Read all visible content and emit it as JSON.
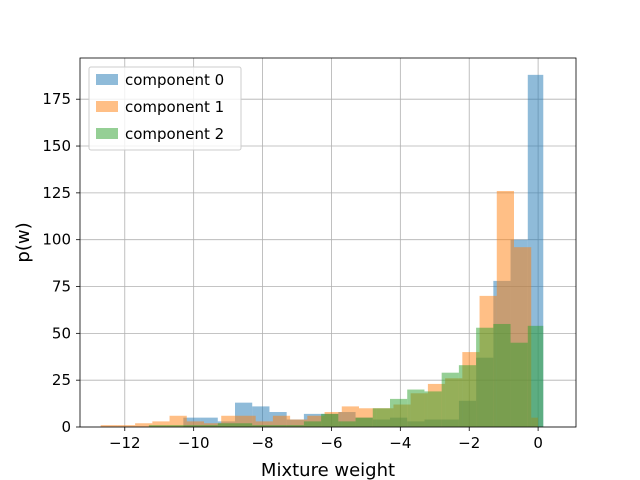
{
  "chart_data": {
    "type": "bar",
    "subtype": "histogram",
    "title": "",
    "xlabel": "Mixture weight",
    "ylabel": "p(w)",
    "xlim": [
      -13.3,
      1.1
    ],
    "ylim": [
      0,
      197
    ],
    "xticks": [
      -12,
      -10,
      -8,
      -6,
      -4,
      -2,
      0
    ],
    "xtick_labels": [
      "−12",
      "−10",
      "−8",
      "−6",
      "−4",
      "−2",
      "0"
    ],
    "yticks": [
      0,
      25,
      50,
      75,
      100,
      125,
      150,
      175
    ],
    "ytick_labels": [
      "0",
      "25",
      "50",
      "75",
      "100",
      "125",
      "150",
      "175"
    ],
    "grid": true,
    "legend_position": "top-left",
    "alpha": 0.5,
    "series": [
      {
        "name": "component 0",
        "color": "#1f77b4",
        "bins": [
          {
            "x0": -10.3,
            "x1": -9.8,
            "count": 5
          },
          {
            "x0": -9.8,
            "x1": -9.3,
            "count": 5
          },
          {
            "x0": -9.3,
            "x1": -8.8,
            "count": 3
          },
          {
            "x0": -8.8,
            "x1": -8.3,
            "count": 13
          },
          {
            "x0": -8.3,
            "x1": -7.8,
            "count": 11
          },
          {
            "x0": -7.8,
            "x1": -7.3,
            "count": 8
          },
          {
            "x0": -7.3,
            "x1": -6.8,
            "count": 4
          },
          {
            "x0": -6.8,
            "x1": -6.3,
            "count": 7
          },
          {
            "x0": -6.3,
            "x1": -5.8,
            "count": 7
          },
          {
            "x0": -5.8,
            "x1": -5.3,
            "count": 8
          },
          {
            "x0": -5.3,
            "x1": -4.8,
            "count": 5
          },
          {
            "x0": -4.8,
            "x1": -4.3,
            "count": 4
          },
          {
            "x0": -4.3,
            "x1": -3.8,
            "count": 5
          },
          {
            "x0": -3.8,
            "x1": -3.3,
            "count": 3
          },
          {
            "x0": -3.3,
            "x1": -2.8,
            "count": 4
          },
          {
            "x0": -2.8,
            "x1": -2.3,
            "count": 4
          },
          {
            "x0": -2.3,
            "x1": -1.8,
            "count": 14
          },
          {
            "x0": -1.8,
            "x1": -1.3,
            "count": 37
          },
          {
            "x0": -1.3,
            "x1": -0.8,
            "count": 78
          },
          {
            "x0": -0.8,
            "x1": -0.3,
            "count": 100
          },
          {
            "x0": -0.3,
            "x1": 0.15,
            "count": 188
          }
        ]
      },
      {
        "name": "component 1",
        "color": "#ff7f0e",
        "bins": [
          {
            "x0": -12.7,
            "x1": -12.2,
            "count": 1
          },
          {
            "x0": -12.2,
            "x1": -11.7,
            "count": 1
          },
          {
            "x0": -11.7,
            "x1": -11.2,
            "count": 2
          },
          {
            "x0": -11.2,
            "x1": -10.7,
            "count": 3
          },
          {
            "x0": -10.7,
            "x1": -10.2,
            "count": 6
          },
          {
            "x0": -10.2,
            "x1": -9.7,
            "count": 3
          },
          {
            "x0": -9.7,
            "x1": -9.2,
            "count": 2
          },
          {
            "x0": -9.2,
            "x1": -8.7,
            "count": 6
          },
          {
            "x0": -8.7,
            "x1": -8.2,
            "count": 6
          },
          {
            "x0": -8.2,
            "x1": -7.7,
            "count": 3
          },
          {
            "x0": -7.7,
            "x1": -7.2,
            "count": 6
          },
          {
            "x0": -7.2,
            "x1": -6.7,
            "count": 4
          },
          {
            "x0": -6.7,
            "x1": -6.2,
            "count": 6
          },
          {
            "x0": -6.2,
            "x1": -5.7,
            "count": 8
          },
          {
            "x0": -5.7,
            "x1": -5.2,
            "count": 11
          },
          {
            "x0": -5.2,
            "x1": -4.7,
            "count": 10
          },
          {
            "x0": -4.7,
            "x1": -4.2,
            "count": 10
          },
          {
            "x0": -4.2,
            "x1": -3.7,
            "count": 12
          },
          {
            "x0": -3.7,
            "x1": -3.2,
            "count": 18
          },
          {
            "x0": -3.2,
            "x1": -2.7,
            "count": 23
          },
          {
            "x0": -2.7,
            "x1": -2.2,
            "count": 26
          },
          {
            "x0": -2.2,
            "x1": -1.7,
            "count": 40
          },
          {
            "x0": -1.7,
            "x1": -1.2,
            "count": 70
          },
          {
            "x0": -1.2,
            "x1": -0.7,
            "count": 126
          },
          {
            "x0": -0.7,
            "x1": -0.2,
            "count": 96
          },
          {
            "x0": -0.2,
            "x1": 0.0,
            "count": 5
          }
        ]
      },
      {
        "name": "component 2",
        "color": "#2ca02c",
        "bins": [
          {
            "x0": -11.3,
            "x1": -10.8,
            "count": 1
          },
          {
            "x0": -10.8,
            "x1": -10.3,
            "count": 1
          },
          {
            "x0": -10.3,
            "x1": -9.8,
            "count": 1
          },
          {
            "x0": -9.8,
            "x1": -9.3,
            "count": 1
          },
          {
            "x0": -9.3,
            "x1": -8.8,
            "count": 2
          },
          {
            "x0": -8.8,
            "x1": -8.3,
            "count": 2
          },
          {
            "x0": -8.3,
            "x1": -7.8,
            "count": 1
          },
          {
            "x0": -7.8,
            "x1": -7.3,
            "count": 1
          },
          {
            "x0": -7.3,
            "x1": -6.8,
            "count": 1
          },
          {
            "x0": -6.8,
            "x1": -6.3,
            "count": 3
          },
          {
            "x0": -6.3,
            "x1": -5.8,
            "count": 7
          },
          {
            "x0": -5.8,
            "x1": -5.3,
            "count": 3
          },
          {
            "x0": -5.3,
            "x1": -4.8,
            "count": 5
          },
          {
            "x0": -4.8,
            "x1": -4.3,
            "count": 10
          },
          {
            "x0": -4.3,
            "x1": -3.8,
            "count": 15
          },
          {
            "x0": -3.8,
            "x1": -3.3,
            "count": 20
          },
          {
            "x0": -3.3,
            "x1": -2.8,
            "count": 19
          },
          {
            "x0": -2.8,
            "x1": -2.3,
            "count": 29
          },
          {
            "x0": -2.3,
            "x1": -1.8,
            "count": 33
          },
          {
            "x0": -1.8,
            "x1": -1.3,
            "count": 53
          },
          {
            "x0": -1.3,
            "x1": -0.8,
            "count": 55
          },
          {
            "x0": -0.8,
            "x1": -0.3,
            "count": 45
          },
          {
            "x0": -0.3,
            "x1": 0.15,
            "count": 54
          }
        ]
      }
    ]
  }
}
